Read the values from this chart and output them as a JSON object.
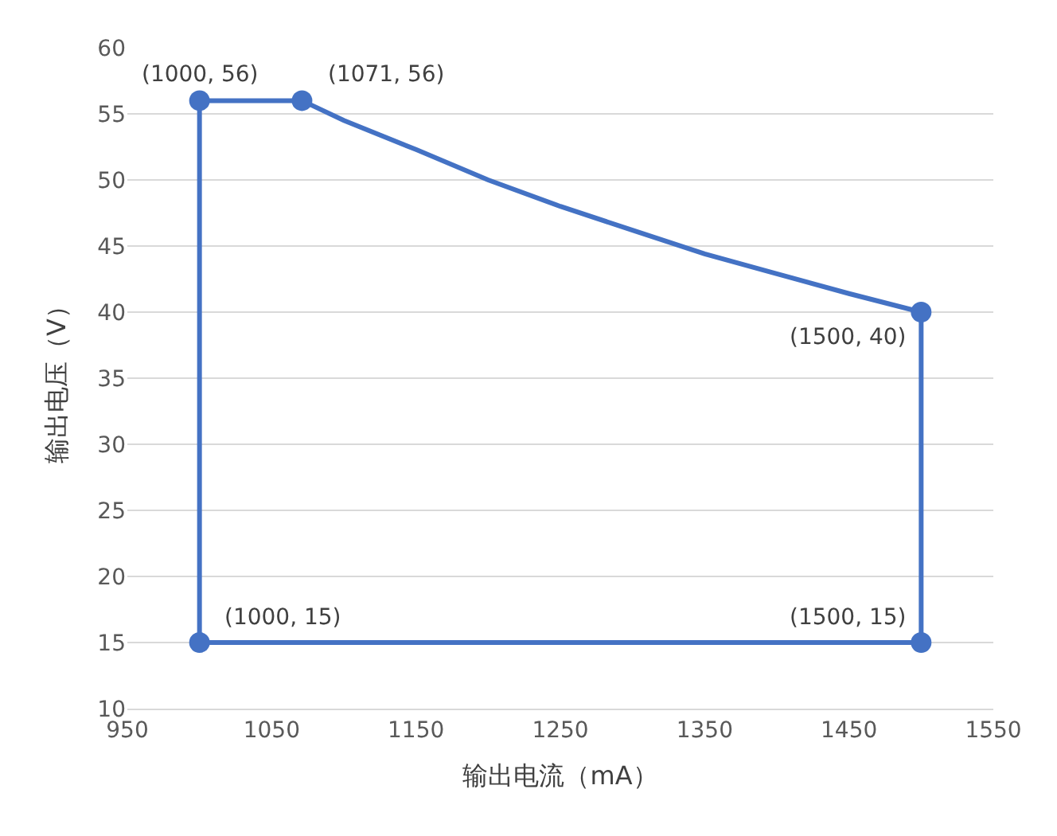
{
  "chart_data": {
    "type": "line",
    "xlabel": "输出电流（mA）",
    "ylabel": "输出电压（V）",
    "series": [
      {
        "color": "#4472c4",
        "x": [
          1000,
          1071,
          1100,
          1150,
          1200,
          1250,
          1300,
          1350,
          1400,
          1450,
          1500
        ],
        "values": [
          56,
          56,
          54.5,
          52.3,
          50,
          48,
          46.2,
          44.4,
          42.9,
          41.4,
          40
        ],
        "marker": "none"
      },
      {
        "color": "#4472c4",
        "x": [
          1000,
          1500
        ],
        "values": [
          15,
          15
        ],
        "marker": "none"
      },
      {
        "color": "#4472c4",
        "x": [
          1000,
          1000
        ],
        "values": [
          15,
          56
        ],
        "marker": "none"
      },
      {
        "color": "#4472c4",
        "x": [
          1500,
          1500
        ],
        "values": [
          15,
          40
        ],
        "marker": "none"
      },
      {
        "type": "scatter",
        "color": "#4472c4",
        "x": [
          1000,
          1071,
          1500,
          1000,
          1500
        ],
        "values": [
          56,
          56,
          40,
          15,
          15
        ],
        "marker": "circle"
      }
    ],
    "annotations": [
      {
        "text": "(1000, 56)",
        "x": 1000,
        "y": 56
      },
      {
        "text": "(1071, 56)",
        "x": 1071,
        "y": 56
      },
      {
        "text": "(1500, 40)",
        "x": 1500,
        "y": 40
      },
      {
        "text": "(1000, 15)",
        "x": 1000,
        "y": 15
      },
      {
        "text": "(1500, 15)",
        "x": 1500,
        "y": 15
      }
    ],
    "xlim": [
      950,
      1550
    ],
    "xticks": [
      950,
      1050,
      1150,
      1250,
      1350,
      1450,
      1550
    ],
    "ylim": [
      10,
      60
    ],
    "yticks": [
      10,
      15,
      20,
      25,
      30,
      35,
      40,
      45,
      50,
      55,
      60
    ],
    "grid": "y"
  }
}
